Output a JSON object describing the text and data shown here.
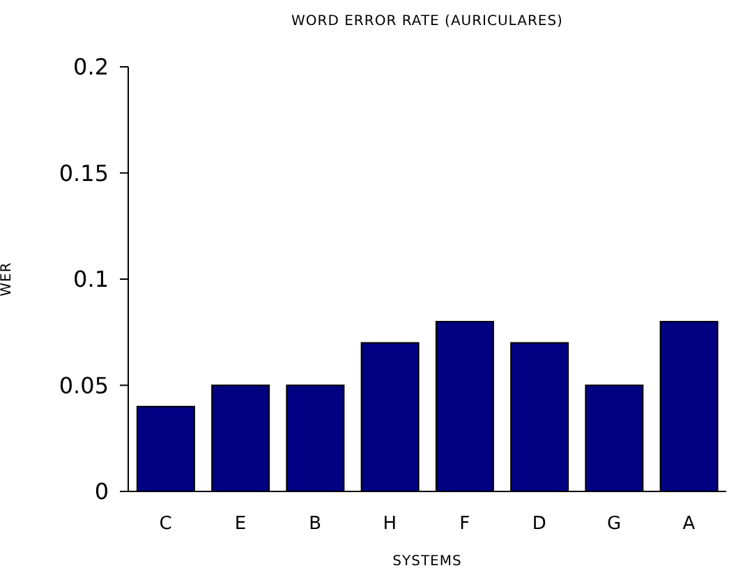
{
  "chart_data": {
    "type": "bar",
    "title": "WORD ERROR RATE (AURICULARES)",
    "xlabel": "SYSTEMS",
    "ylabel": "WER",
    "categories": [
      "C",
      "E",
      "B",
      "H",
      "F",
      "D",
      "G",
      "A"
    ],
    "values": [
      0.04,
      0.05,
      0.05,
      0.07,
      0.08,
      0.07,
      0.05,
      0.08
    ],
    "color": "#000080",
    "ylim": [
      0,
      0.2
    ],
    "yticks": [
      0,
      0.05,
      0.1,
      0.15,
      0.2
    ],
    "grid": false,
    "legend": false
  }
}
